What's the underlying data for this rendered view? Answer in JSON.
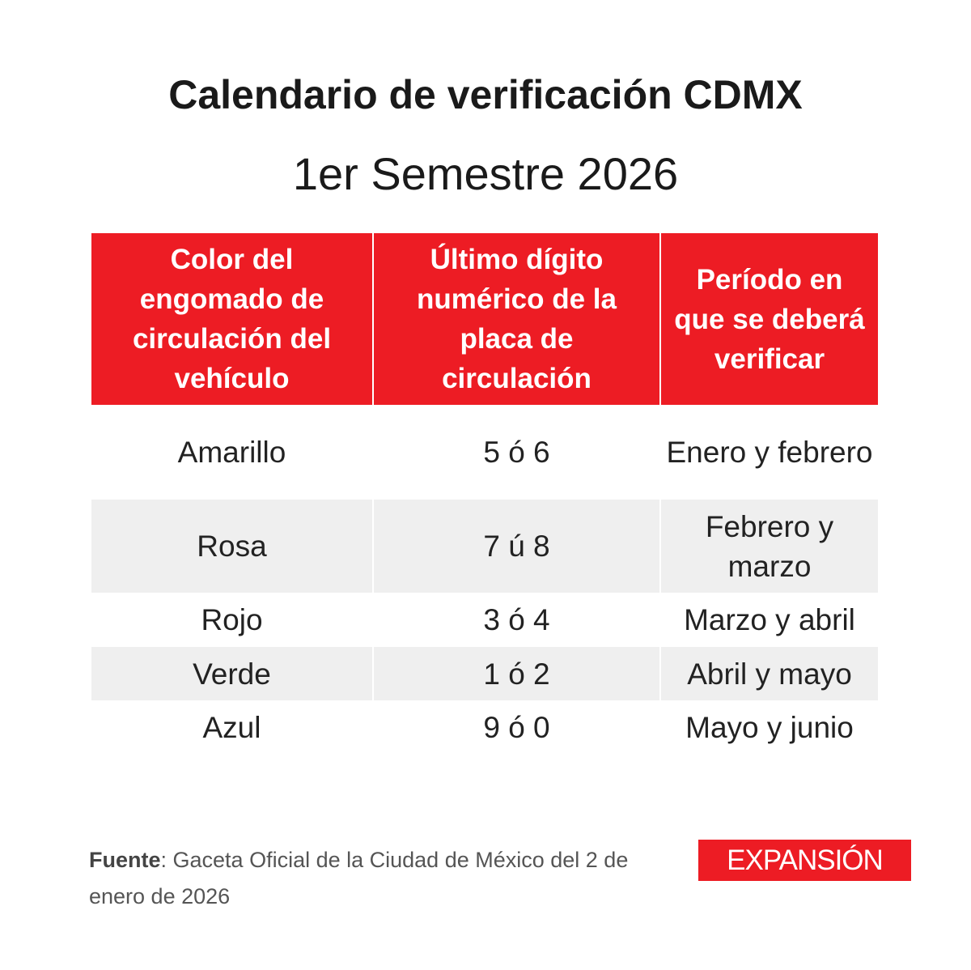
{
  "title": "Calendario de verificación CDMX",
  "subtitle": "1er Semestre 2026",
  "table": {
    "headers": [
      "Color del engomado de circulación del vehículo",
      "Último dígito numérico de la placa de circulación",
      "Período en que se deberá verificar"
    ],
    "rows": [
      [
        "Amarillo",
        "5 ó 6",
        "Enero y febrero"
      ],
      [
        "Rosa",
        "7 ú 8",
        "Febrero y marzo"
      ],
      [
        "Rojo",
        "3 ó 4",
        "Marzo y abril"
      ],
      [
        "Verde",
        "1 ó 2",
        "Abril y mayo"
      ],
      [
        "Azul",
        "9 ó 0",
        "Mayo y junio"
      ]
    ]
  },
  "footer": {
    "source_label": "Fuente",
    "source_text": ": Gaceta Oficial de la Ciudad de México del 2 de enero de 2026",
    "logo": "EXPANSIÓN"
  },
  "colors": {
    "accent": "#ed1c24",
    "row_alt": "#efefef"
  }
}
